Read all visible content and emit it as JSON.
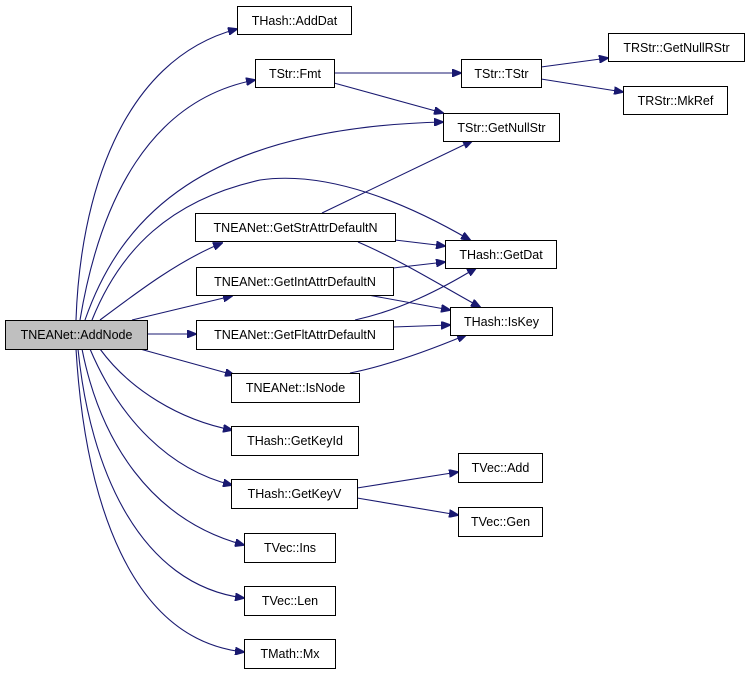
{
  "graph": {
    "edge_color": "#191970",
    "root_fill": "#bfbfbf",
    "nodes": {
      "addnode": "TNEANet::AddNode",
      "adddat": "THash::AddDat",
      "fmt": "TStr::Fmt",
      "getstr": "TNEANet::GetStrAttrDefaultN",
      "getint": "TNEANet::GetIntAttrDefaultN",
      "getflt": "TNEANet::GetFltAttrDefaultN",
      "isnode": "TNEANet::IsNode",
      "getkeyid": "THash::GetKeyId",
      "getkeyv": "THash::GetKeyV",
      "ins": "TVec::Ins",
      "len": "TVec::Len",
      "mx": "TMath::Mx",
      "tstr": "TStr::TStr",
      "getnullstr": "TStr::GetNullStr",
      "getdat": "THash::GetDat",
      "iskey": "THash::IsKey",
      "getnullrstr": "TRStr::GetNullRStr",
      "mkref": "TRStr::MkRef",
      "vecadd": "TVec::Add",
      "vecgen": "TVec::Gen"
    },
    "edges": [
      [
        "addnode",
        "adddat"
      ],
      [
        "addnode",
        "fmt"
      ],
      [
        "addnode",
        "getnullstr"
      ],
      [
        "addnode",
        "getdat"
      ],
      [
        "addnode",
        "getstr"
      ],
      [
        "addnode",
        "getint"
      ],
      [
        "addnode",
        "getflt"
      ],
      [
        "addnode",
        "isnode"
      ],
      [
        "addnode",
        "getkeyid"
      ],
      [
        "addnode",
        "getkeyv"
      ],
      [
        "addnode",
        "ins"
      ],
      [
        "addnode",
        "len"
      ],
      [
        "addnode",
        "mx"
      ],
      [
        "fmt",
        "tstr"
      ],
      [
        "fmt",
        "getnullstr"
      ],
      [
        "tstr",
        "getnullrstr"
      ],
      [
        "tstr",
        "mkref"
      ],
      [
        "getstr",
        "getnullstr"
      ],
      [
        "getstr",
        "getdat"
      ],
      [
        "getstr",
        "iskey"
      ],
      [
        "getint",
        "getdat"
      ],
      [
        "getint",
        "iskey"
      ],
      [
        "getflt",
        "getdat"
      ],
      [
        "getflt",
        "iskey"
      ],
      [
        "isnode",
        "iskey"
      ],
      [
        "getkeyv",
        "vecadd"
      ],
      [
        "getkeyv",
        "vecgen"
      ]
    ]
  }
}
